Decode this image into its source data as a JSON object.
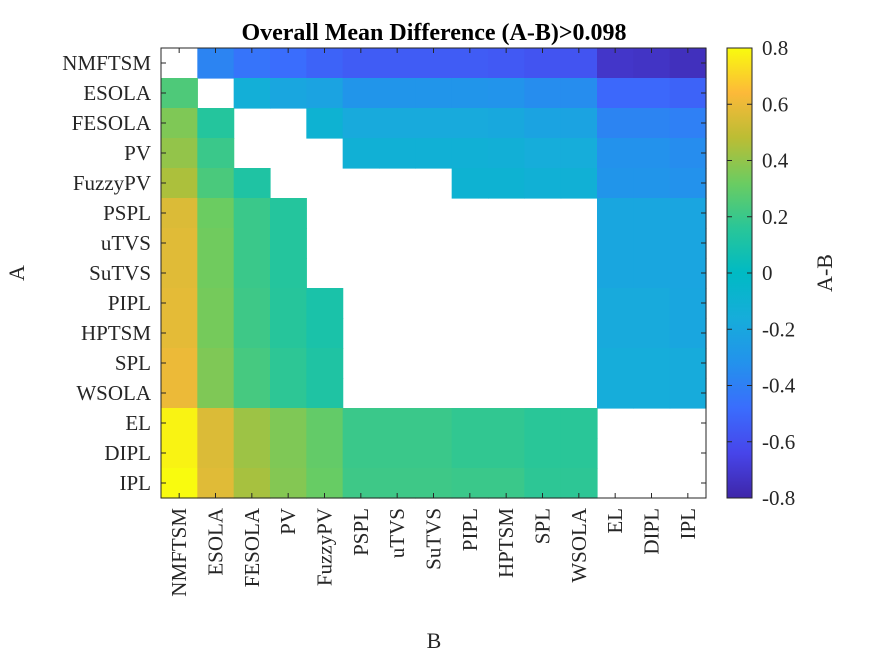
{
  "chart_data": {
    "type": "heatmap",
    "title": "Overall Mean Difference (A-B)>0.098",
    "xlabel": "B",
    "ylabel": "A",
    "colorbar_label": "A-B",
    "clim": [
      -0.8,
      0.8
    ],
    "colorbar_ticks": [
      "0.8",
      "0.6",
      "0.4",
      "0.2",
      "0",
      "-0.2",
      "-0.4",
      "-0.6",
      "-0.8"
    ],
    "colorbar_tick_values": [
      0.8,
      0.6,
      0.4,
      0.2,
      0,
      -0.2,
      -0.4,
      -0.6,
      -0.8
    ],
    "rows": [
      "NMFTSM",
      "ESOLA",
      "FESOLA",
      "PV",
      "FuzzyPV",
      "PSPL",
      "uTVS",
      "SuTVS",
      "PIPL",
      "HPTSM",
      "SPL",
      "WSOLA",
      "EL",
      "DIPL",
      "IPL"
    ],
    "columns": [
      "NMFTSM",
      "ESOLA",
      "FESOLA",
      "PV",
      "FuzzyPV",
      "PSPL",
      "uTVS",
      "SuTVS",
      "PIPL",
      "HPTSM",
      "SPL",
      "WSOLA",
      "EL",
      "DIPL",
      "IPL"
    ],
    "values": [
      [
        null,
        -0.38,
        -0.45,
        -0.48,
        -0.52,
        -0.55,
        -0.55,
        -0.55,
        -0.55,
        -0.56,
        -0.58,
        -0.58,
        -0.72,
        -0.73,
        -0.75
      ],
      [
        0.25,
        null,
        -0.14,
        -0.2,
        -0.22,
        -0.3,
        -0.3,
        -0.3,
        -0.3,
        -0.31,
        -0.34,
        -0.34,
        -0.5,
        -0.5,
        -0.52
      ],
      [
        0.36,
        0.14,
        null,
        null,
        -0.1,
        -0.18,
        -0.18,
        -0.18,
        -0.18,
        -0.19,
        -0.22,
        -0.22,
        -0.38,
        -0.38,
        -0.4
      ],
      [
        0.4,
        0.2,
        null,
        null,
        null,
        -0.12,
        -0.12,
        -0.12,
        -0.12,
        -0.13,
        -0.16,
        -0.16,
        -0.32,
        -0.32,
        -0.34
      ],
      [
        0.45,
        0.24,
        0.12,
        null,
        null,
        null,
        null,
        null,
        -0.1,
        -0.1,
        -0.12,
        -0.12,
        -0.3,
        -0.3,
        -0.32
      ],
      [
        0.56,
        0.32,
        0.2,
        0.14,
        null,
        null,
        null,
        null,
        null,
        null,
        null,
        null,
        -0.2,
        -0.2,
        -0.21
      ],
      [
        0.57,
        0.33,
        0.2,
        0.14,
        null,
        null,
        null,
        null,
        null,
        null,
        null,
        null,
        -0.2,
        -0.2,
        -0.21
      ],
      [
        0.57,
        0.33,
        0.2,
        0.14,
        null,
        null,
        null,
        null,
        null,
        null,
        null,
        null,
        -0.2,
        -0.2,
        -0.21
      ],
      [
        0.58,
        0.34,
        0.21,
        0.15,
        0.1,
        null,
        null,
        null,
        null,
        null,
        null,
        null,
        -0.18,
        -0.18,
        -0.2
      ],
      [
        0.58,
        0.34,
        0.21,
        0.15,
        0.1,
        null,
        null,
        null,
        null,
        null,
        null,
        null,
        -0.18,
        -0.18,
        -0.2
      ],
      [
        0.6,
        0.36,
        0.23,
        0.17,
        0.12,
        null,
        null,
        null,
        null,
        null,
        null,
        null,
        -0.16,
        -0.16,
        -0.17
      ],
      [
        0.6,
        0.36,
        0.23,
        0.17,
        0.12,
        null,
        null,
        null,
        null,
        null,
        null,
        null,
        -0.16,
        -0.16,
        -0.17
      ],
      [
        0.78,
        0.56,
        0.42,
        0.36,
        0.3,
        0.2,
        0.2,
        0.2,
        0.18,
        0.18,
        0.16,
        0.16,
        null,
        null,
        null
      ],
      [
        0.78,
        0.56,
        0.42,
        0.36,
        0.3,
        0.2,
        0.2,
        0.2,
        0.18,
        0.18,
        0.16,
        0.16,
        null,
        null,
        null
      ],
      [
        0.8,
        0.57,
        0.44,
        0.37,
        0.31,
        0.21,
        0.21,
        0.21,
        0.2,
        0.2,
        0.17,
        0.17,
        null,
        null,
        null
      ]
    ]
  }
}
